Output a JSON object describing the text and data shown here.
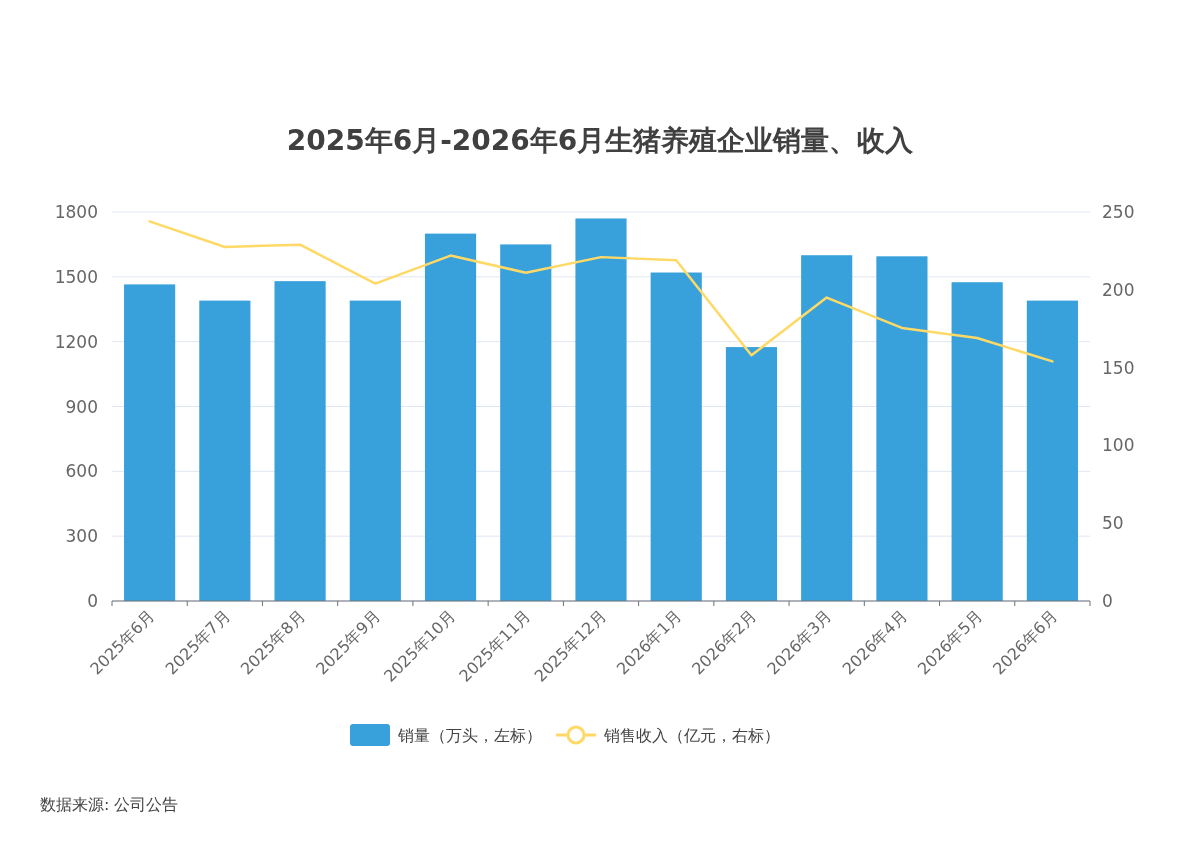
{
  "chart_data": {
    "type": "bar",
    "title": "2025年6月-2026年6月生猪养殖企业销量、收入",
    "categories": [
      "2025年6月",
      "2025年7月",
      "2025年8月",
      "2025年9月",
      "2025年10月",
      "2025年11月",
      "2025年12月",
      "2026年1月",
      "2026年2月",
      "2026年3月",
      "2026年4月",
      "2026年5月",
      "2026年6月"
    ],
    "series": [
      {
        "name": "销量（万头，左标）",
        "color": "#38a1db",
        "values": [
          1465,
          1390,
          1480,
          1390,
          1700,
          1650,
          1770,
          1520,
          1175,
          1600,
          1595,
          1475,
          1390
        ]
      },
      {
        "name": "销售收入（亿元，右标）",
        "type": "line",
        "axis": "y2",
        "color": "#ffd966",
        "values": [
          244,
          227.5,
          229,
          204,
          222,
          211,
          221,
          219,
          158,
          195,
          175.5,
          169,
          154
        ]
      }
    ],
    "ylim": [
      0,
      1800
    ],
    "yticks": [
      0,
      300,
      600,
      900,
      1200,
      1500,
      1800
    ],
    "y2lim": [
      0,
      250
    ],
    "y2ticks": [
      0,
      50,
      100,
      150,
      200,
      250
    ],
    "grid": "y",
    "legend": "bottom",
    "line_style": "solid",
    "annotations": [
      "数据来源: 公司公告"
    ]
  }
}
